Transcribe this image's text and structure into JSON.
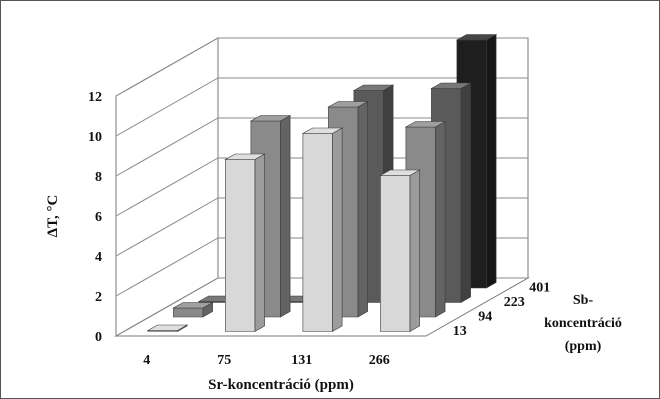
{
  "chart_data": {
    "type": "bar",
    "subtype": "3d-column",
    "xlabel": "Sr-koncentráció (ppm)",
    "ylabel": "ΔT, °C",
    "zlabel": [
      "Sb-",
      "koncentráció",
      "(ppm)"
    ],
    "categories": [
      "4",
      "75",
      "131",
      "266"
    ],
    "depth_categories": [
      "13",
      "94",
      "223",
      "401"
    ],
    "ylim": [
      0,
      12
    ],
    "yticks": [
      "0",
      "2",
      "4",
      "6",
      "8",
      "10",
      "12"
    ],
    "grid": true,
    "legend": "none",
    "colors": {
      "13": "#d8d8d8",
      "94": "#8a8a8a",
      "223": "#5a5a5a",
      "401": "#1e1e1e"
    },
    "series": [
      {
        "name": "13",
        "values": [
          0.05,
          8.6,
          9.9,
          7.8
        ]
      },
      {
        "name": "94",
        "values": [
          0.45,
          9.8,
          10.5,
          9.5
        ]
      },
      {
        "name": "223",
        "values": [
          0.05,
          0.05,
          10.6,
          10.7
        ]
      },
      {
        "name": "401",
        "values": [
          null,
          null,
          null,
          12.4
        ]
      }
    ]
  }
}
